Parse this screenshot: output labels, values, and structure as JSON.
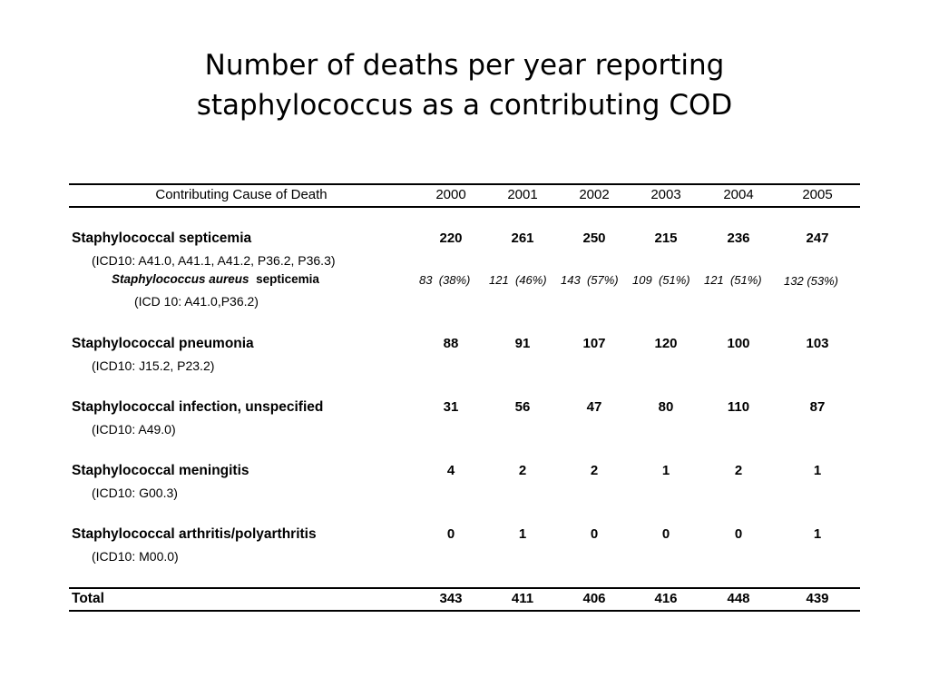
{
  "title": {
    "line1": "Number of deaths per year reporting",
    "line2": "staphylococcus as a contributing COD"
  },
  "table": {
    "header": {
      "label": "Contributing Cause of Death",
      "years": [
        "2000",
        "2001",
        "2002",
        "2003",
        "2004",
        "2005"
      ]
    },
    "rows": [
      {
        "name": "Staphylococcal septicemia",
        "code": "(ICD10: A41.0, A41.1, A41.2, P36.2, P36.3)",
        "values": [
          "220",
          "261",
          "250",
          "215",
          "236",
          "247"
        ],
        "sub": {
          "name_italic": "Staphylococcus aureus",
          "name_rest": "septicemia",
          "code": "(ICD 10: A41.0,P36.2)",
          "values": [
            {
              "n": "83",
              "p": "(38%)"
            },
            {
              "n": "121",
              "p": "(46%)"
            },
            {
              "n": "143",
              "p": "(57%)"
            },
            {
              "n": "109",
              "p": "(51%)"
            },
            {
              "n": "121",
              "p": "(51%)"
            },
            {
              "n": "132",
              "p": "(53%)"
            }
          ]
        }
      },
      {
        "name": "Staphylococcal pneumonia",
        "code": "(ICD10: J15.2, P23.2)",
        "values": [
          "88",
          "91",
          "107",
          "120",
          "100",
          "103"
        ]
      },
      {
        "name": "Staphylococcal infection, unspecified",
        "code": "(ICD10: A49.0)",
        "values": [
          "31",
          "56",
          "47",
          "80",
          "110",
          "87"
        ]
      },
      {
        "name": "Staphylococcal meningitis",
        "code": "(ICD10: G00.3)",
        "values": [
          "4",
          "2",
          "2",
          "1",
          "2",
          "1"
        ]
      },
      {
        "name": "Staphylococcal arthritis/polyarthritis",
        "code": "(ICD10: M00.0)",
        "values": [
          "0",
          "1",
          "0",
          "0",
          "0",
          "1"
        ]
      }
    ],
    "total": {
      "label": "Total",
      "values": [
        "343",
        "411",
        "406",
        "416",
        "448",
        "439"
      ]
    }
  }
}
